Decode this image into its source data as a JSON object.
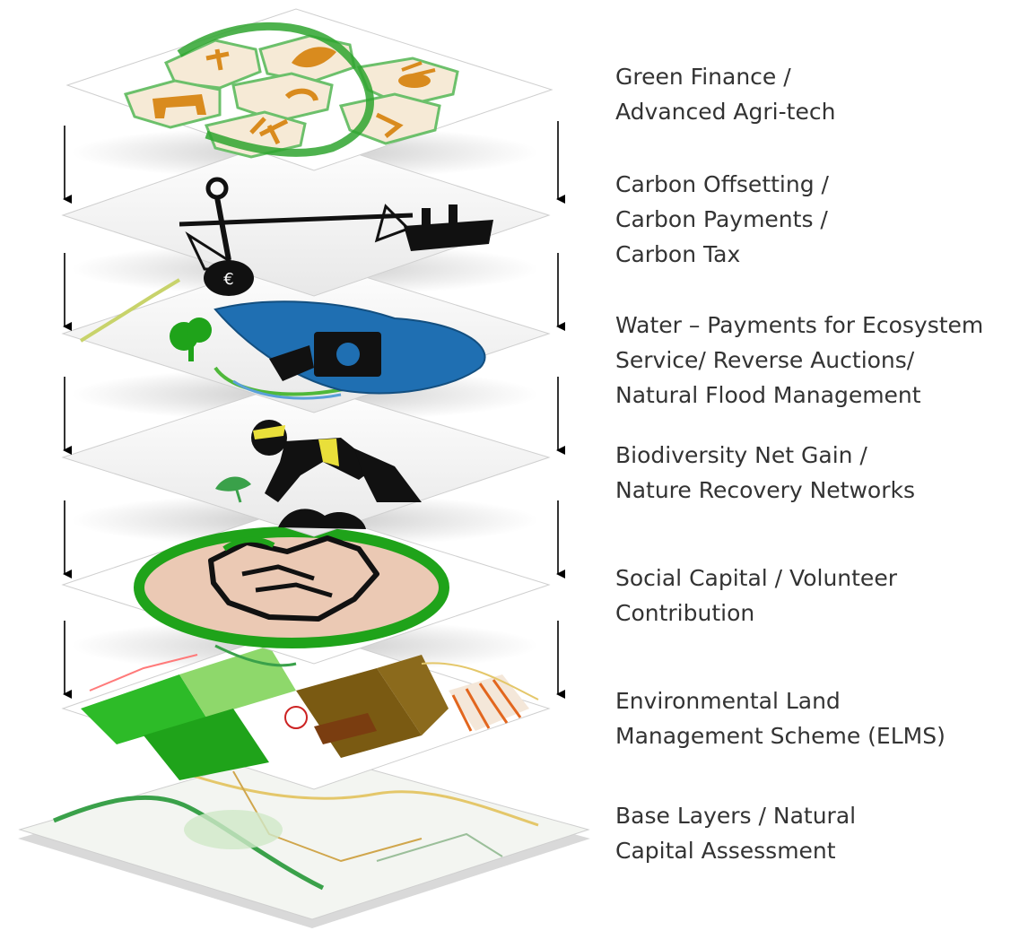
{
  "layers": [
    {
      "id": "green-finance",
      "lines": [
        "Green Finance /",
        "Advanced Agri-tech"
      ],
      "icons": [
        "cow-icon",
        "bee-icon",
        "leaf-icon",
        "crop-icon",
        "hexagon-grid-icon"
      ]
    },
    {
      "id": "carbon",
      "lines": [
        "Carbon Offsetting /",
        "Carbon Payments /",
        "Carbon Tax"
      ],
      "icons": [
        "balance-scale-icon",
        "factory-icon",
        "money-bag-icon"
      ]
    },
    {
      "id": "water",
      "lines": [
        "Water – Payments for Ecosystem",
        "Service/ Reverse Auctions/",
        "Natural Flood Management"
      ],
      "icons": [
        "water-drop-icon",
        "cash-hand-icon",
        "tree-icon",
        "river-icon"
      ]
    },
    {
      "id": "biodiversity",
      "lines": [
        "Biodiversity Net Gain /",
        "Nature Recovery Networks"
      ],
      "icons": [
        "planting-worker-icon",
        "seedling-icon",
        "soil-mound-icon"
      ]
    },
    {
      "id": "social-capital",
      "lines": [
        "Social Capital / Volunteer",
        "Contribution"
      ],
      "icons": [
        "handshake-icon",
        "green-ring-icon"
      ]
    },
    {
      "id": "elms",
      "lines": [
        "Environmental Land",
        "Management Scheme (ELMS)"
      ],
      "icons": [
        "land-parcel-map-icon"
      ]
    },
    {
      "id": "base-layers",
      "lines": [
        "Base Layers / Natural",
        "Capital Assessment"
      ],
      "icons": [
        "base-map-icon"
      ]
    }
  ],
  "colors": {
    "label_text": "#333333",
    "plate_fill": "#ffffff",
    "plate_edge": "#cfcfcf",
    "arrow": "#000000",
    "green": "#2fa52f",
    "light_green": "#6cd44a",
    "orange": "#d98b1e",
    "water_blue": "#1f6fb2",
    "dark_icon": "#1a1a1a",
    "brown": "#7a5a12",
    "peach": "#ebc9b4"
  }
}
